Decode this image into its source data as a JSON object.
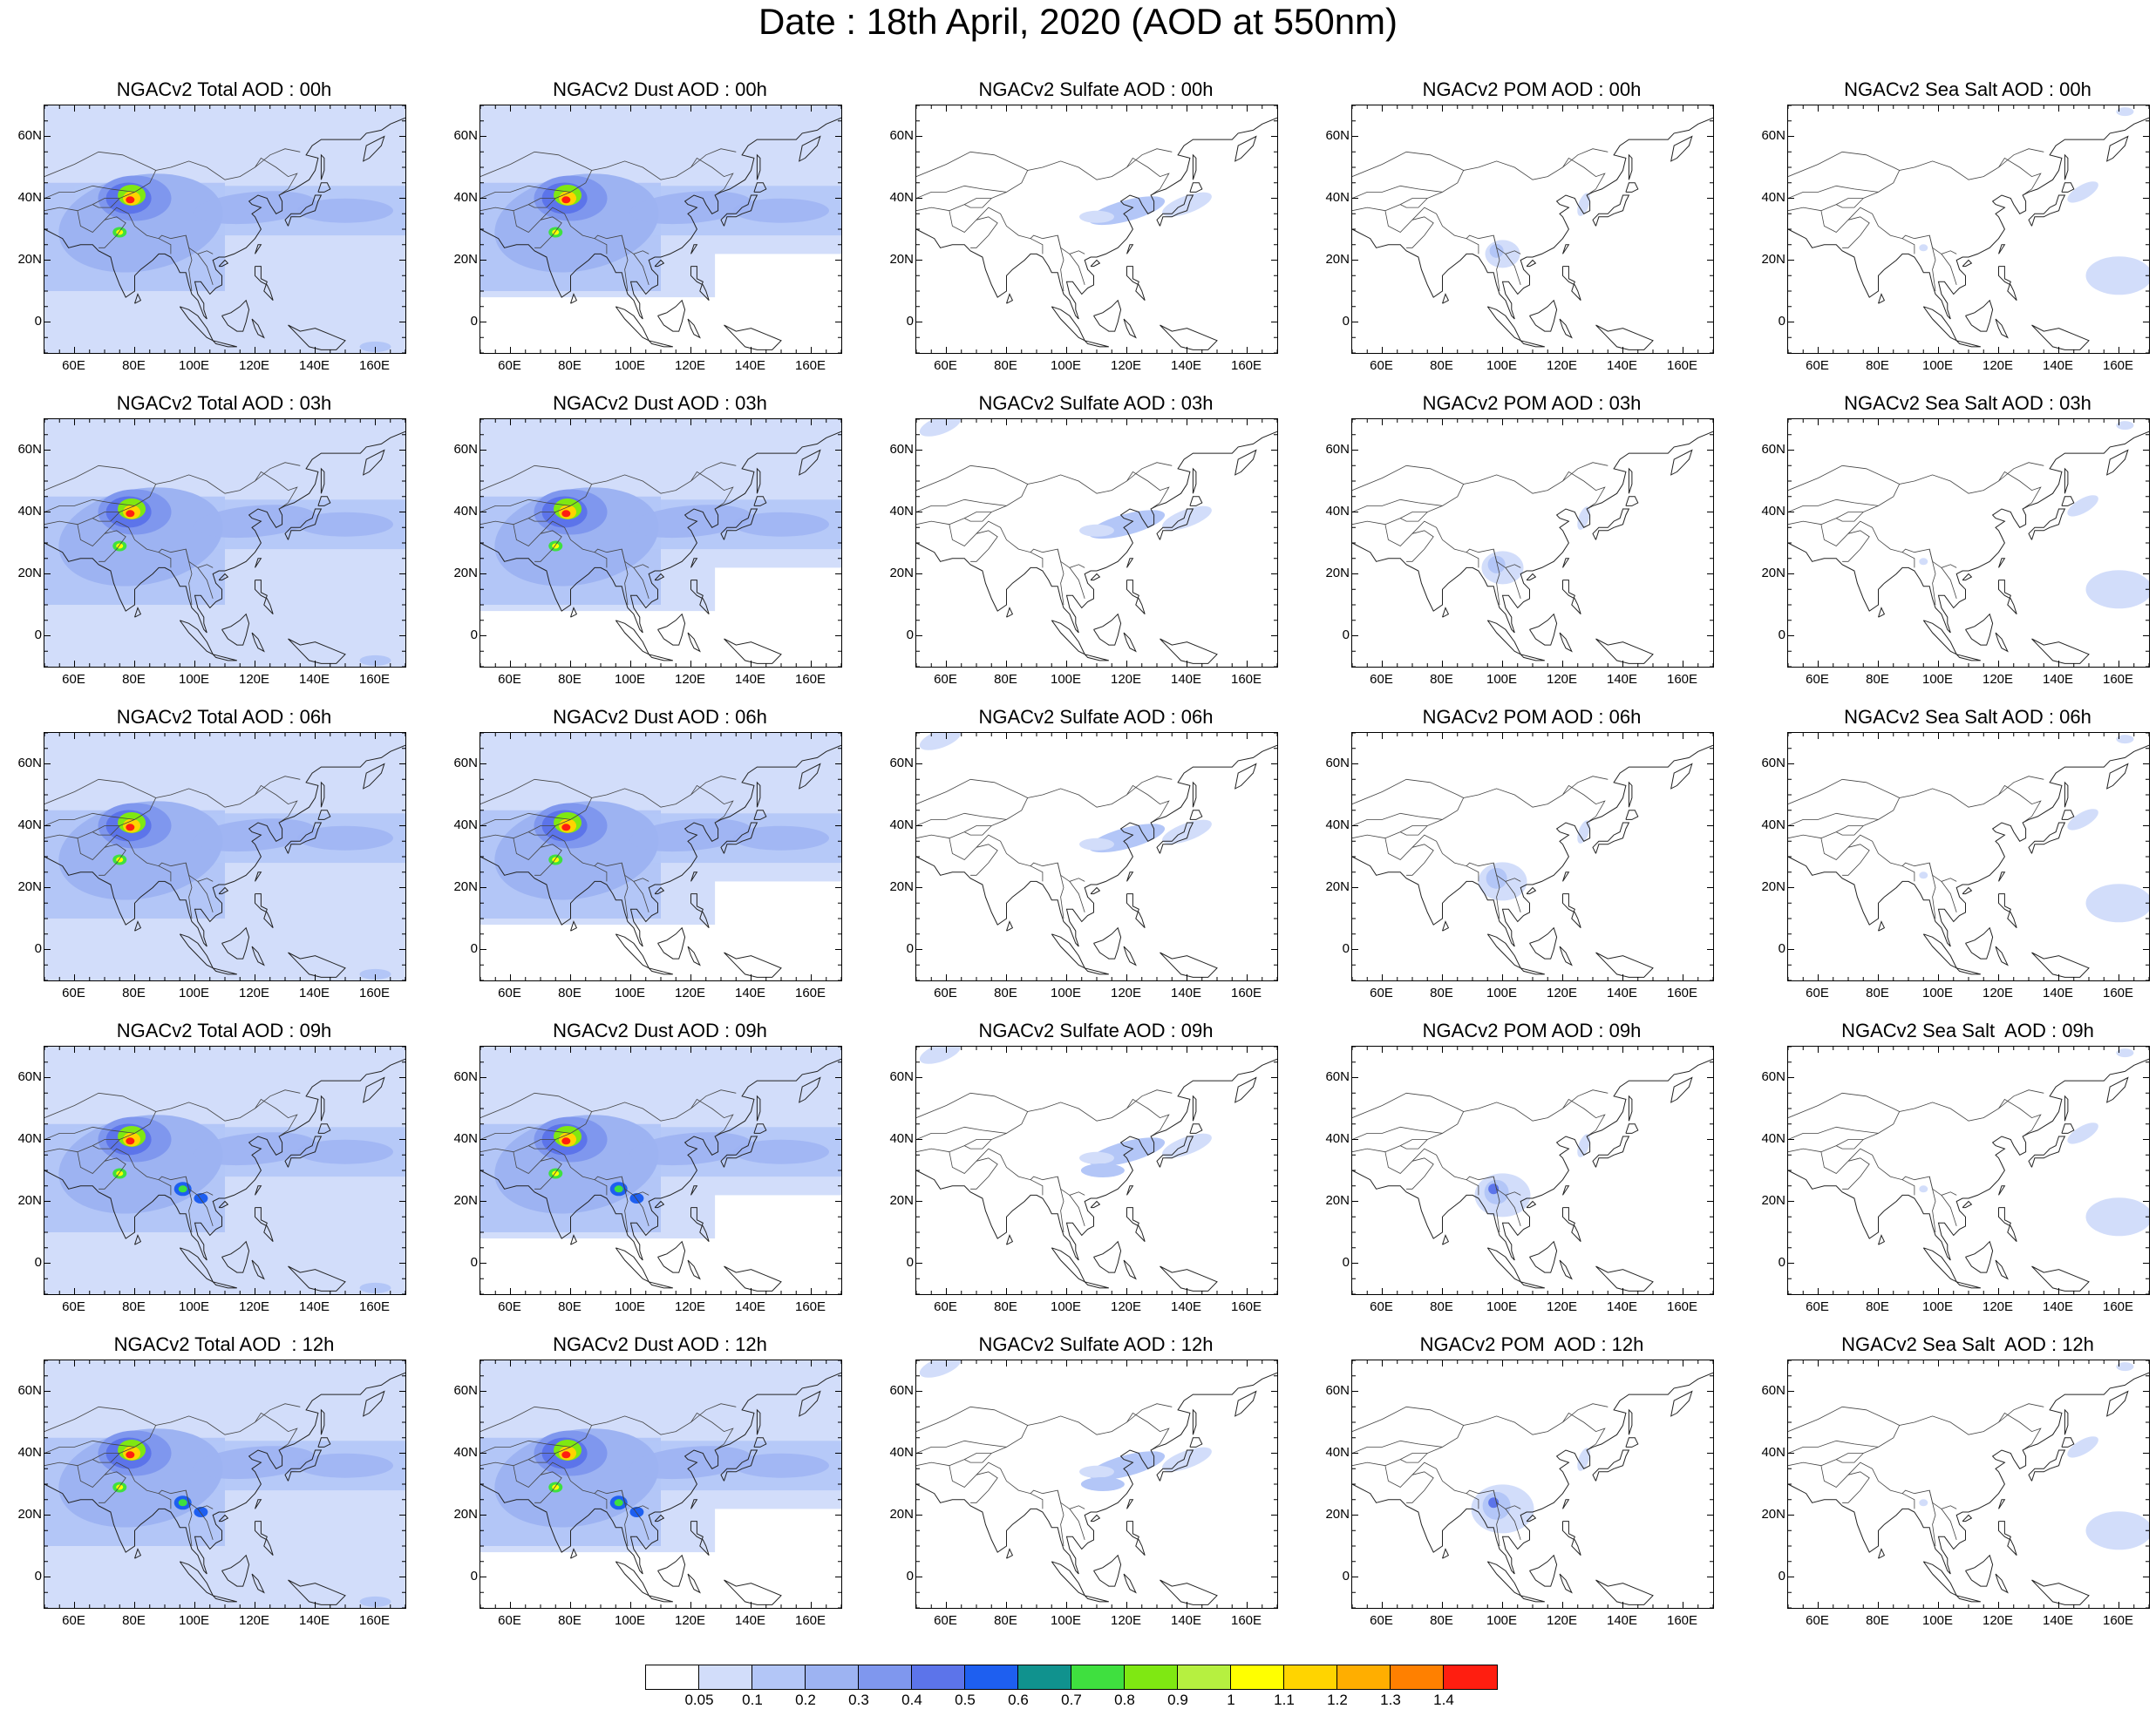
{
  "main_title": "Date : 18th April, 2020 (AOD at 550nm)",
  "panel_titles": [
    [
      "NGACv2 Total AOD : 00h",
      "NGACv2 Dust AOD : 00h",
      "NGACv2 Sulfate AOD : 00h",
      "NGACv2 POM AOD : 00h",
      "NGACv2 Sea Salt AOD : 00h"
    ],
    [
      "NGACv2 Total AOD : 03h",
      "NGACv2 Dust AOD : 03h",
      "NGACv2 Sulfate AOD : 03h",
      "NGACv2 POM AOD : 03h",
      "NGACv2 Sea Salt AOD : 03h"
    ],
    [
      "NGACv2 Total AOD : 06h",
      "NGACv2 Dust AOD : 06h",
      "NGACv2 Sulfate AOD : 06h",
      "NGACv2 POM AOD : 06h",
      "NGACv2 Sea Salt AOD : 06h"
    ],
    [
      "NGACv2 Total AOD : 09h",
      "NGACv2 Dust AOD : 09h",
      "NGACv2 Sulfate AOD : 09h",
      "NGACv2 POM AOD : 09h",
      "NGACv2 Sea Salt  AOD : 09h"
    ],
    [
      "NGACv2 Total AOD  : 12h",
      "NGACv2 Dust AOD : 12h",
      "NGACv2 Sulfate AOD : 12h",
      "NGACv2 POM  AOD : 12h",
      "NGACv2 Sea Salt  AOD : 12h"
    ]
  ],
  "lat_labels": [
    "60N",
    "40N",
    "20N",
    "0"
  ],
  "lon_labels": [
    "60E",
    "80E",
    "100E",
    "120E",
    "140E",
    "160E"
  ],
  "colorbar": {
    "colors": [
      "#ffffff",
      "#d2ddfa",
      "#b3c6f7",
      "#9db3f2",
      "#7f97ee",
      "#5c74ea",
      "#1e5ff0",
      "#10928e",
      "#3fe03f",
      "#7fe812",
      "#b6f040",
      "#ffff00",
      "#ffd400",
      "#ffae00",
      "#ff8000",
      "#ff1e10"
    ],
    "labels": [
      "0.05",
      "0.1",
      "0.2",
      "0.3",
      "0.4",
      "0.5",
      "0.6",
      "0.7",
      "0.8",
      "0.9",
      "1",
      "1.1",
      "1.2",
      "1.3",
      "1.4"
    ]
  },
  "map_extent": {
    "lon": [
      50,
      170
    ],
    "lat": [
      -10,
      70
    ]
  }
}
